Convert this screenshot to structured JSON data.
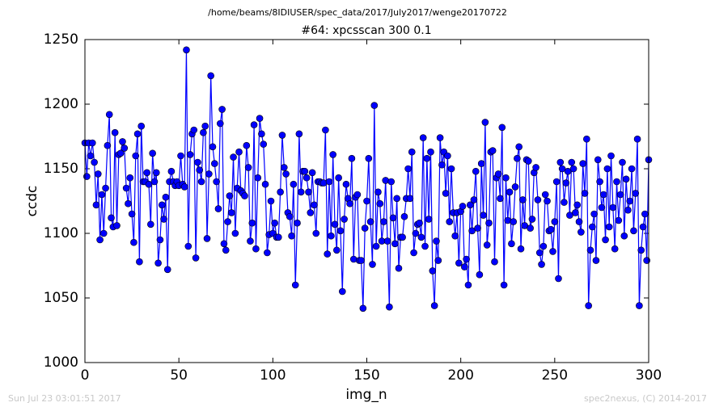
{
  "header": "/home/beams/8IDIUSER/spec_data/2017/July2017/wenge20170722",
  "footer_left": "Sun Jul 23 03:01:51 2017",
  "footer_right": "spec2nexus, (C) 2014-2017",
  "chart_data": {
    "type": "line",
    "title": "#64: xpcsscan 300 0.1",
    "xlabel": "img_n",
    "ylabel": "ccdc",
    "xlim": [
      0,
      300
    ],
    "xticks": [
      0,
      50,
      100,
      150,
      200,
      250,
      300
    ],
    "ylim": [
      1000,
      1250
    ],
    "yticks": [
      1000,
      1050,
      1100,
      1150,
      1200,
      1250
    ],
    "x": [
      0,
      1,
      2,
      3,
      4,
      5,
      6,
      7,
      8,
      9,
      10,
      11,
      12,
      13,
      14,
      15,
      16,
      17,
      18,
      19,
      20,
      21,
      22,
      23,
      24,
      25,
      26,
      27,
      28,
      29,
      30,
      31,
      32,
      33,
      34,
      35,
      36,
      37,
      38,
      39,
      40,
      41,
      42,
      43,
      44,
      45,
      46,
      47,
      48,
      49,
      50,
      51,
      52,
      53,
      54,
      55,
      56,
      57,
      58,
      59,
      60,
      61,
      62,
      63,
      64,
      65,
      66,
      67,
      68,
      69,
      70,
      71,
      72,
      73,
      74,
      75,
      76,
      77,
      78,
      79,
      80,
      81,
      82,
      83,
      84,
      85,
      86,
      87,
      88,
      89,
      90,
      91,
      92,
      93,
      94,
      95,
      96,
      97,
      98,
      99,
      100,
      101,
      102,
      103,
      104,
      105,
      106,
      107,
      108,
      109,
      110,
      111,
      112,
      113,
      114,
      115,
      116,
      117,
      118,
      119,
      120,
      121,
      122,
      123,
      124,
      125,
      126,
      127,
      128,
      129,
      130,
      131,
      132,
      133,
      134,
      135,
      136,
      137,
      138,
      139,
      140,
      141,
      142,
      143,
      144,
      145,
      146,
      147,
      148,
      149,
      150,
      151,
      152,
      153,
      154,
      155,
      156,
      157,
      158,
      159,
      160,
      161,
      162,
      163,
      164,
      165,
      166,
      167,
      168,
      169,
      170,
      171,
      172,
      173,
      174,
      175,
      176,
      177,
      178,
      179,
      180,
      181,
      182,
      183,
      184,
      185,
      186,
      187,
      188,
      189,
      190,
      191,
      192,
      193,
      194,
      195,
      196,
      197,
      198,
      199,
      200,
      201,
      202,
      203,
      204,
      205,
      206,
      207,
      208,
      209,
      210,
      211,
      212,
      213,
      214,
      215,
      216,
      217,
      218,
      219,
      220,
      221,
      222,
      223,
      224,
      225,
      226,
      227,
      228,
      229,
      230,
      231,
      232,
      233,
      234,
      235,
      236,
      237,
      238,
      239,
      240,
      241,
      242,
      243,
      244,
      245,
      246,
      247,
      248,
      249,
      250,
      251,
      252,
      253,
      254,
      255,
      256,
      257,
      258,
      259,
      260,
      261,
      262,
      263,
      264,
      265,
      266,
      267,
      268,
      269,
      270,
      271,
      272,
      273,
      274,
      275,
      276,
      277,
      278,
      279,
      280,
      281,
      282,
      283,
      284,
      285,
      286,
      287,
      288,
      289,
      290,
      291,
      292,
      293,
      294,
      295,
      296,
      297,
      298,
      299,
      300
    ],
    "series": [
      {
        "color": "#0000ff",
        "values": [
          1170,
          1144,
          1170,
          1160,
          1170,
          1155,
          1122,
          1146,
          1095,
          1130,
          1100,
          1135,
          1168,
          1192,
          1112,
          1105,
          1178,
          1106,
          1161,
          1162,
          1171,
          1166,
          1135,
          1123,
          1143,
          1115,
          1093,
          1160,
          1177,
          1078,
          1183,
          1140,
          1140,
          1147,
          1138,
          1107,
          1162,
          1140,
          1147,
          1077,
          1095,
          1122,
          1111,
          1128,
          1072,
          1140,
          1148,
          1140,
          1137,
          1140,
          1137,
          1160,
          1138,
          1136,
          1242,
          1090,
          1161,
          1177,
          1180,
          1081,
          1155,
          1149,
          1140,
          1178,
          1183,
          1096,
          1146,
          1222,
          1167,
          1154,
          1140,
          1119,
          1185,
          1196,
          1092,
          1087,
          1109,
          1129,
          1116,
          1159,
          1100,
          1135,
          1163,
          1133,
          1131,
          1129,
          1168,
          1151,
          1094,
          1108,
          1184,
          1088,
          1143,
          1189,
          1177,
          1169,
          1138,
          1085,
          1099,
          1125,
          1100,
          1108,
          1097,
          1097,
          1132,
          1176,
          1151,
          1146,
          1116,
          1113,
          1098,
          1138,
          1060,
          1108,
          1177,
          1132,
          1148,
          1148,
          1143,
          1132,
          1116,
          1147,
          1122,
          1100,
          1140,
          1140,
          1139,
          1139,
          1180,
          1084,
          1140,
          1098,
          1161,
          1107,
          1087,
          1143,
          1102,
          1055,
          1111,
          1138,
          1127,
          1123,
          1158,
          1080,
          1128,
          1130,
          1079,
          1079,
          1042,
          1104,
          1125,
          1158,
          1109,
          1076,
          1199,
          1090,
          1132,
          1123,
          1094,
          1109,
          1141,
          1094,
          1043,
          1140,
          1112,
          1092,
          1127,
          1073,
          1097,
          1097,
          1113,
          1127,
          1150,
          1127,
          1163,
          1085,
          1100,
          1107,
          1108,
          1097,
          1174,
          1090,
          1158,
          1111,
          1163,
          1071,
          1044,
          1094,
          1079,
          1174,
          1153,
          1163,
          1131,
          1160,
          1109,
          1150,
          1116,
          1098,
          1116,
          1077,
          1117,
          1121,
          1074,
          1080,
          1060,
          1122,
          1102,
          1126,
          1148,
          1104,
          1068,
          1154,
          1114,
          1186,
          1091,
          1108,
          1163,
          1164,
          1078,
          1143,
          1146,
          1127,
          1182,
          1060,
          1143,
          1110,
          1132,
          1092,
          1109,
          1136,
          1158,
          1167,
          1088,
          1126,
          1106,
          1157,
          1156,
          1104,
          1111,
          1147,
          1151,
          1126,
          1085,
          1076,
          1090,
          1130,
          1125,
          1102,
          1103,
          1086,
          1109,
          1140,
          1065,
          1155,
          1150,
          1124,
          1139,
          1148,
          1114,
          1155,
          1150,
          1116,
          1122,
          1109,
          1101,
          1154,
          1131,
          1173,
          1044,
          1087,
          1105,
          1115,
          1079,
          1157,
          1140,
          1120,
          1130,
          1095,
          1150,
          1105,
          1160,
          1120,
          1088,
          1140,
          1110,
          1130,
          1155,
          1098,
          1142,
          1118,
          1125,
          1150,
          1102,
          1131,
          1173,
          1044,
          1087,
          1105,
          1115,
          1079,
          1157
        ]
      }
    ]
  }
}
